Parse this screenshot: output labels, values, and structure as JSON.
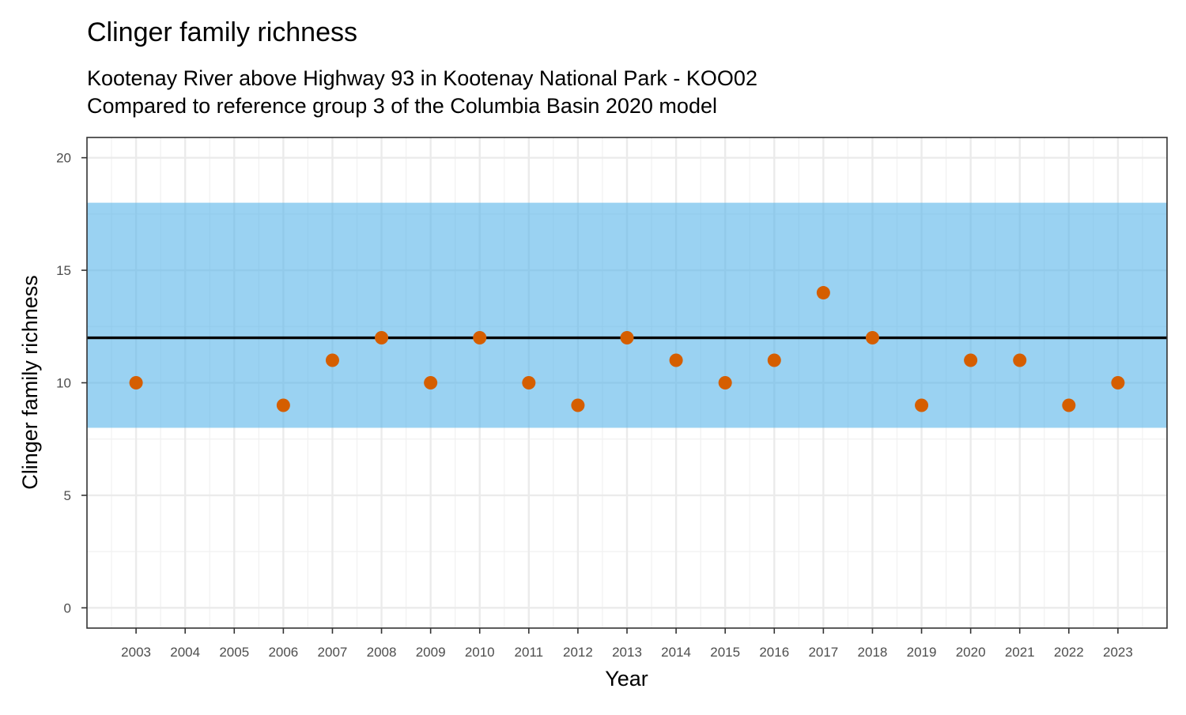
{
  "chart_data": {
    "type": "scatter",
    "title": "Clinger family richness",
    "subtitle_lines": [
      "Kootenay River above Highway 93 in Kootenay National Park - KOO02",
      "Compared to reference group 3 of the Columbia Basin 2020 model"
    ],
    "xlabel": "Year",
    "ylabel": "Clinger family richness",
    "x_ticks": [
      2003,
      2004,
      2005,
      2006,
      2007,
      2008,
      2009,
      2010,
      2011,
      2012,
      2013,
      2014,
      2015,
      2016,
      2017,
      2018,
      2019,
      2020,
      2021,
      2022,
      2023
    ],
    "y_ticks": [
      0,
      5,
      10,
      15,
      20
    ],
    "xlim": [
      2002.0,
      2024.0
    ],
    "ylim": [
      -0.9,
      20.9
    ],
    "grid": true,
    "reference_band": {
      "ymin": 8,
      "ymax": 18,
      "color": "#56B4E9",
      "opacity": 0.6
    },
    "reference_line": {
      "y": 12,
      "color": "#000000"
    },
    "series": [
      {
        "color": "#D55E00",
        "x": [
          2003,
          2006,
          2007,
          2008,
          2009,
          2010,
          2011,
          2012,
          2013,
          2014,
          2015,
          2016,
          2017,
          2018,
          2019,
          2020,
          2021,
          2022,
          2023
        ],
        "y": [
          10,
          9,
          11,
          12,
          10,
          12,
          10,
          9,
          12,
          11,
          10,
          11,
          14,
          12,
          9,
          11,
          11,
          9,
          10
        ]
      }
    ]
  }
}
